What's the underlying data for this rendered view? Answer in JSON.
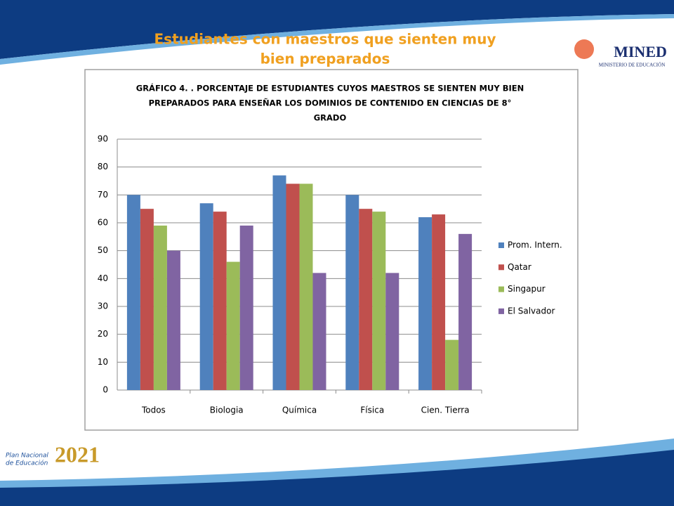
{
  "slide_title": [
    "Estudiantes con maestros que sienten muy",
    "bien preparados"
  ],
  "logos": {
    "mined": "MINED",
    "ministry": "MINISTERIO DE EDUCACIÓN",
    "plan": [
      "Plan Nacional",
      "de Educación"
    ],
    "year": "2021"
  },
  "chart_data": {
    "type": "bar",
    "title": [
      "GRÁFICO 4. . PORCENTAJE DE ESTUDIANTES CUYOS MAESTROS SE SIENTEN MUY BIEN",
      "PREPARADOS PARA ENSEÑAR LOS DOMINIOS DE CONTENIDO EN CIENCIAS DE 8°",
      "GRADO"
    ],
    "categories": [
      "Todos",
      "Biologia",
      "Química",
      "Física",
      "Cien. Tierra"
    ],
    "series": [
      {
        "name": "Prom. Intern.",
        "color": "#4f81bd",
        "values": [
          70,
          67,
          77,
          70,
          62
        ]
      },
      {
        "name": "Qatar",
        "color": "#c0504d",
        "values": [
          65,
          64,
          74,
          65,
          63
        ]
      },
      {
        "name": "Singapur",
        "color": "#9bbb59",
        "values": [
          59,
          46,
          74,
          64,
          18
        ]
      },
      {
        "name": "El Salvador",
        "color": "#8064a2",
        "values": [
          50,
          59,
          42,
          42,
          56
        ]
      }
    ],
    "ylim": [
      0,
      90
    ],
    "yticks": [
      0,
      10,
      20,
      30,
      40,
      50,
      60,
      70,
      80,
      90
    ],
    "grid": true,
    "legend": "right"
  }
}
